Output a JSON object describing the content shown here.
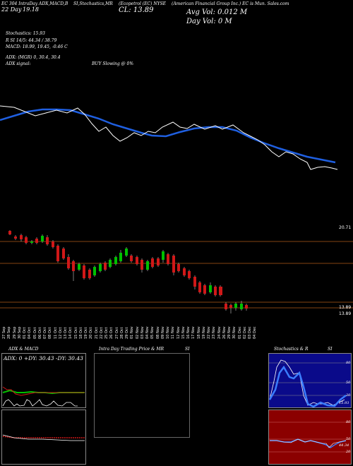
{
  "header": {
    "line1_left": "EC 304 IntraDay ADX,MACD,B",
    "line1_mid": "SI,Stochastics,MR",
    "line1_mid2": "(Ecopetrol (EC) NYSE",
    "line1_right": "(American Financial Group Inc.) EC is Mun. Sales.com",
    "line2_a": "22 Day",
    "line2_b": "19.18",
    "close_label": "CL: 13.89",
    "avg_vol": "Avg Vol: 0.012  M",
    "day_vol": "Day Vol: 0   M",
    "stoch": "Stochastics: 15.93",
    "r_line": "R           SI 14/5: 44.34   / 38.79",
    "macd_line": "MACD: 18.99,  19.45, -0.46  C",
    "adx_line": "ADX:                   (MGR) 0,  30.4,  30.4",
    "adx_signal": "ADX signal:",
    "buy_signal": "BUY Slowing @ 0%"
  },
  "price_labels": {
    "top": "20.71",
    "p1": "13.89",
    "p2": "13.89"
  },
  "date_ticks": [
    "27 Sep",
    "28 Sep",
    "29 Sep",
    "30 Sep",
    "01 Oct",
    "04 Oct",
    "05 Oct",
    "06 Oct",
    "07 Oct",
    "08 Oct",
    "11 Oct",
    "12 Oct",
    "13 Oct",
    "14 Oct",
    "15 Oct",
    "18 Oct",
    "19 Oct",
    "20 Oct",
    "21 Oct",
    "22 Oct",
    "25 Oct",
    "26 Oct",
    "27 Oct",
    "28 Oct",
    "29 Oct",
    "01 Nov",
    "02 Nov",
    "03 Nov",
    "04 Nov",
    "05 Nov",
    "08 Nov",
    "09 Nov",
    "10 Nov",
    "11 Nov",
    "12 Nov",
    "15 Nov",
    "16 Nov",
    "17 Nov",
    "18 Nov",
    "19 Nov",
    "22 Nov",
    "23 Nov",
    "24 Nov",
    "26 Nov",
    "29 Nov",
    "30 Nov",
    "01 Dec",
    "02 Dec",
    "03 Dec",
    "04 Dec"
  ],
  "bottom": {
    "adx_macd_title": "ADX & MACD",
    "adx_readout": "ADX: 0  +DY: 30.43 -DY: 30.43",
    "intraday_title": "Intra Day Trading Price & MR",
    "si_title1": "SI",
    "stoch_title": "Stochastics & R",
    "si_title2": "SI",
    "stoch_scale": [
      "80",
      "50",
      "20"
    ],
    "rsi_scale": [
      "80",
      "50",
      "20"
    ],
    "stoch_val": "15.93",
    "rsi_val": "44.34"
  },
  "colors": {
    "background": "#000000",
    "sma_line": "#1f5fe0",
    "price_line": "#ffffff",
    "up_candle": "#00c000",
    "down_candle": "#d01818",
    "rsi_bg": "#8b0000",
    "stoch_bg": "#0a0a8a",
    "level_line": "#b05a18"
  }
}
